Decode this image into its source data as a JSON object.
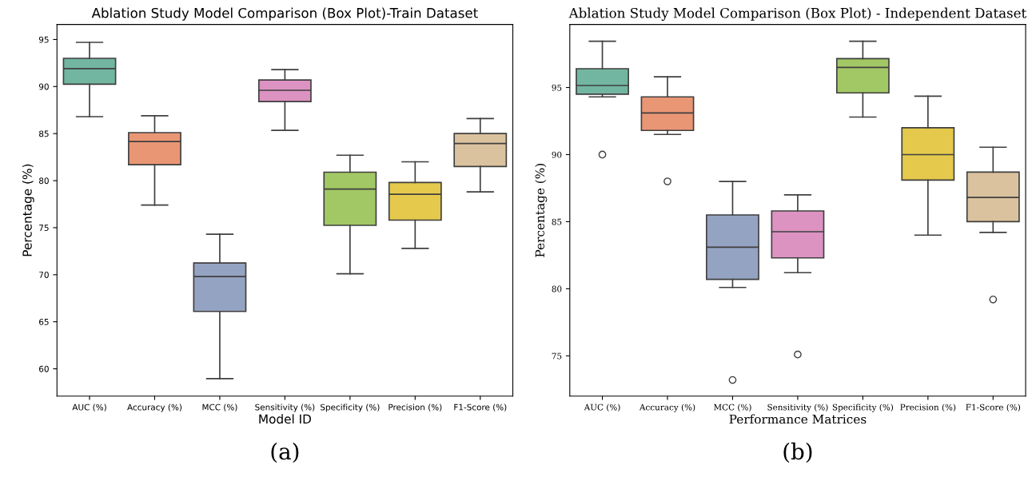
{
  "chart_data": [
    {
      "type": "box",
      "title": "Ablation Study Model Comparison (Box Plot)-Train Dataset",
      "xlabel": "Model ID",
      "ylabel": "Percentage (%)",
      "categories": [
        "AUC (%)",
        "Accuracy (%)",
        "MCC (%)",
        "Sensitivity (%)",
        "Specificity (%)",
        "Precision (%)",
        "F1-Score (%)"
      ],
      "colors": [
        "#72b6a1",
        "#e99675",
        "#95a3c3",
        "#dc93c1",
        "#a2c865",
        "#e4c94c",
        "#dbc29e"
      ],
      "boxes": [
        {
          "low": 86.8,
          "q1": 90.25,
          "median": 91.9,
          "q3": 93.0,
          "high": 94.7
        },
        {
          "low": 77.4,
          "q1": 81.7,
          "median": 84.15,
          "q3": 85.1,
          "high": 86.9
        },
        {
          "low": 58.95,
          "q1": 66.1,
          "median": 69.8,
          "q3": 71.25,
          "high": 74.3
        },
        {
          "low": 85.35,
          "q1": 88.4,
          "median": 89.6,
          "q3": 90.7,
          "high": 91.8
        },
        {
          "low": 70.1,
          "q1": 75.25,
          "median": 79.1,
          "q3": 80.9,
          "high": 82.7
        },
        {
          "low": 72.8,
          "q1": 75.8,
          "median": 78.55,
          "q3": 79.8,
          "high": 82.0
        },
        {
          "low": 78.8,
          "q1": 81.5,
          "median": 83.95,
          "q3": 85.0,
          "high": 86.6
        }
      ],
      "ylim": [
        57.1,
        96.6
      ],
      "yticks": [
        60,
        65,
        70,
        75,
        80,
        85,
        90,
        95
      ],
      "grid": false,
      "annotations": [
        "(a)"
      ]
    },
    {
      "type": "box",
      "title": "Ablation Study Model Comparison (Box Plot) - Independent Dataset",
      "xlabel": "Performance Matrices",
      "ylabel": "Percentage (%)",
      "categories": [
        "AUC (%)",
        "Accuracy (%)",
        "MCC (%)",
        "Sensitivity (%)",
        "Specificity (%)",
        "Precision (%)",
        "F1-Score (%)"
      ],
      "colors": [
        "#72b6a1",
        "#e99675",
        "#95a3c3",
        "#dc93c1",
        "#a2c865",
        "#e4c94c",
        "#dbc29e"
      ],
      "boxes": [
        {
          "low": 94.3,
          "q1": 94.5,
          "median": 95.15,
          "q3": 96.4,
          "high": 98.45,
          "outliers": [
            90.0
          ]
        },
        {
          "low": 91.5,
          "q1": 91.8,
          "median": 93.1,
          "q3": 94.3,
          "high": 95.8,
          "outliers": [
            88.0
          ]
        },
        {
          "low": 80.1,
          "q1": 80.7,
          "median": 83.1,
          "q3": 85.5,
          "high": 88.0,
          "outliers": [
            73.2
          ]
        },
        {
          "low": 81.2,
          "q1": 82.3,
          "median": 84.25,
          "q3": 85.8,
          "high": 87.0,
          "outliers": [
            75.1
          ]
        },
        {
          "low": 92.8,
          "q1": 94.6,
          "median": 96.5,
          "q3": 97.15,
          "high": 98.45
        },
        {
          "low": 84.0,
          "q1": 88.1,
          "median": 90.0,
          "q3": 92.0,
          "high": 94.35
        },
        {
          "low": 84.2,
          "q1": 85.0,
          "median": 86.8,
          "q3": 88.7,
          "high": 90.55,
          "outliers": [
            79.2
          ]
        }
      ],
      "ylim": [
        72.0,
        99.7
      ],
      "yticks": [
        75,
        80,
        85,
        90,
        95
      ],
      "grid": false,
      "annotations": [
        "(b)"
      ]
    }
  ]
}
